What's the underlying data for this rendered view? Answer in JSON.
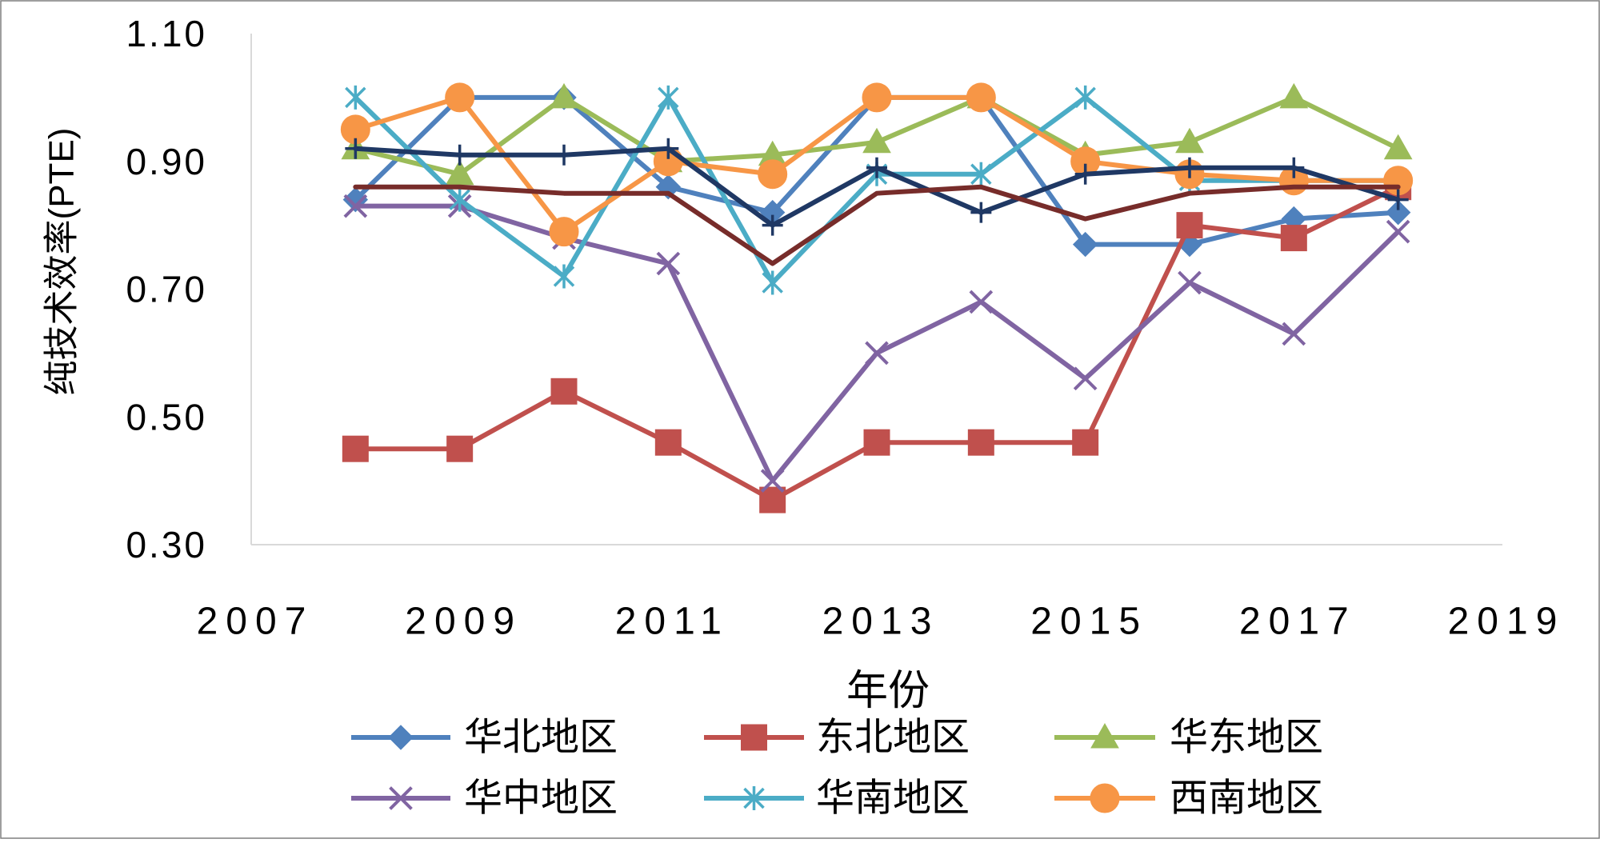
{
  "chart_data": {
    "type": "line",
    "xlabel": "年份",
    "ylabel": "纯技术效率(PTE)",
    "xlim": [
      2007,
      2019
    ],
    "ylim": [
      0.3,
      1.1
    ],
    "x_ticks": [
      2007,
      2009,
      2011,
      2013,
      2015,
      2017,
      2019
    ],
    "x_tick_labels": [
      "2007",
      "2009",
      "2011",
      "2013",
      "2015",
      "2017",
      "2019"
    ],
    "y_ticks": [
      0.3,
      0.5,
      0.7,
      0.9,
      1.1
    ],
    "y_tick_labels": [
      "0.30",
      "0.50",
      "0.70",
      "0.90",
      "1.10"
    ],
    "grid": false,
    "legend": "bottom",
    "x": [
      2008,
      2009,
      2010,
      2011,
      2012,
      2013,
      2014,
      2015,
      2016,
      2017,
      2018
    ],
    "series": [
      {
        "name": "华北地区",
        "color": "#4F81BD",
        "marker": "diamond",
        "values": [
          0.84,
          1.0,
          1.0,
          0.86,
          0.82,
          1.0,
          1.0,
          0.77,
          0.77,
          0.81,
          0.82
        ]
      },
      {
        "name": "东北地区",
        "color": "#C0504D",
        "marker": "square",
        "values": [
          0.45,
          0.45,
          0.54,
          0.46,
          0.37,
          0.46,
          0.46,
          0.46,
          0.8,
          0.78,
          0.86
        ]
      },
      {
        "name": "华东地区",
        "color": "#9BBB59",
        "marker": "triangle",
        "values": [
          0.92,
          0.88,
          1.0,
          0.9,
          0.91,
          0.93,
          1.0,
          0.91,
          0.93,
          1.0,
          0.92
        ]
      },
      {
        "name": "华中地区",
        "color": "#8064A2",
        "marker": "x",
        "values": [
          0.83,
          0.83,
          0.78,
          0.74,
          0.4,
          0.6,
          0.68,
          0.56,
          0.71,
          0.63,
          0.79
        ]
      },
      {
        "name": "华南地区",
        "color": "#4BACC6",
        "marker": "asterisk",
        "values": [
          1.0,
          0.84,
          0.72,
          1.0,
          0.71,
          0.88,
          0.88,
          1.0,
          0.87,
          0.87,
          0.87
        ]
      },
      {
        "name": "西南地区",
        "color": "#F79646",
        "marker": "circle",
        "values": [
          0.95,
          1.0,
          0.79,
          0.9,
          0.88,
          1.0,
          1.0,
          0.9,
          0.88,
          0.87,
          0.87
        ]
      },
      {
        "color": "#1F3864",
        "marker": "plus",
        "values": [
          0.92,
          0.91,
          0.91,
          0.92,
          0.8,
          0.89,
          0.82,
          0.88,
          0.89,
          0.89,
          0.84
        ]
      },
      {
        "color": "#772C2A",
        "marker": "none",
        "values": [
          0.86,
          0.86,
          0.85,
          0.85,
          0.74,
          0.85,
          0.86,
          0.81,
          0.85,
          0.86,
          0.86
        ]
      }
    ]
  }
}
